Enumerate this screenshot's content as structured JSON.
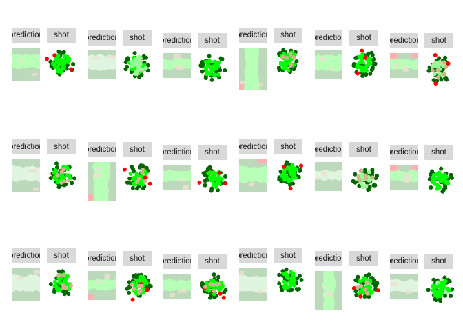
{
  "colors": {
    "background": "#ffffff",
    "strip": "#d9d9d9",
    "prediction_base": "#bcd9bc",
    "prediction_band": "#b8ffb8",
    "prediction_light": "#e0f5e0",
    "prediction_tan": "#ecdfd0",
    "prediction_red": "#ffb0b0",
    "dark_green": "#006400",
    "green": "#00ff00",
    "light_green": "#98fb98",
    "tan": "#d2b48c",
    "red": "#ff0000"
  },
  "chart_data": {
    "type": "scatter",
    "layout": "small-multiples",
    "rows": 3,
    "pairs_per_row": 6,
    "panel_labels": [
      "prediction",
      "shot"
    ],
    "panels": [
      {
        "row": 1,
        "col": 1,
        "prediction": "horizontal-band",
        "shot": [
          "dark_green",
          "green",
          "red"
        ]
      },
      {
        "row": 1,
        "col": 2,
        "prediction": "light-band",
        "shot": [
          "dark_green",
          "green",
          "tan",
          "light_green"
        ]
      },
      {
        "row": 1,
        "col": 3,
        "prediction": "horizontal-band",
        "shot": [
          "dark_green",
          "green"
        ]
      },
      {
        "row": 1,
        "col": 4,
        "prediction": "vertical-band-red",
        "shot": [
          "dark_green",
          "green",
          "tan"
        ]
      },
      {
        "row": 1,
        "col": 5,
        "prediction": "horizontal-band",
        "shot": [
          "dark_green",
          "green",
          "red"
        ]
      },
      {
        "row": 1,
        "col": 6,
        "prediction": "red-corners",
        "shot": [
          "dark_green",
          "light_green",
          "red",
          "tan"
        ]
      },
      {
        "row": 2,
        "col": 1,
        "prediction": "light-band",
        "shot": [
          "dark_green",
          "green",
          "tan"
        ]
      },
      {
        "row": 2,
        "col": 2,
        "prediction": "vertical-band-red",
        "shot": [
          "dark_green",
          "green",
          "tan",
          "red"
        ]
      },
      {
        "row": 2,
        "col": 3,
        "prediction": "horizontal-band",
        "shot": [
          "dark_green",
          "green",
          "red"
        ]
      },
      {
        "row": 2,
        "col": 4,
        "prediction": "band-red-top",
        "shot": [
          "dark_green",
          "green",
          "red"
        ]
      },
      {
        "row": 2,
        "col": 5,
        "prediction": "light-band",
        "shot": [
          "dark_green",
          "light_green",
          "tan"
        ]
      },
      {
        "row": 2,
        "col": 6,
        "prediction": "red-corners",
        "shot": [
          "dark_green",
          "green"
        ]
      },
      {
        "row": 3,
        "col": 1,
        "prediction": "light-band",
        "shot": [
          "dark_green",
          "green",
          "tan"
        ]
      },
      {
        "row": 3,
        "col": 2,
        "prediction": "horizontal-band-red",
        "shot": [
          "dark_green",
          "green",
          "red",
          "tan"
        ]
      },
      {
        "row": 3,
        "col": 3,
        "prediction": "horizontal-band",
        "shot": [
          "dark_green",
          "green",
          "red",
          "tan"
        ]
      },
      {
        "row": 3,
        "col": 4,
        "prediction": "light-band",
        "shot": [
          "dark_green",
          "green"
        ]
      },
      {
        "row": 3,
        "col": 5,
        "prediction": "vertical-band",
        "shot": [
          "dark_green",
          "green",
          "tan",
          "red"
        ]
      },
      {
        "row": 3,
        "col": 6,
        "prediction": "light-band",
        "shot": [
          "dark_green",
          "light_green",
          "green"
        ]
      }
    ]
  }
}
